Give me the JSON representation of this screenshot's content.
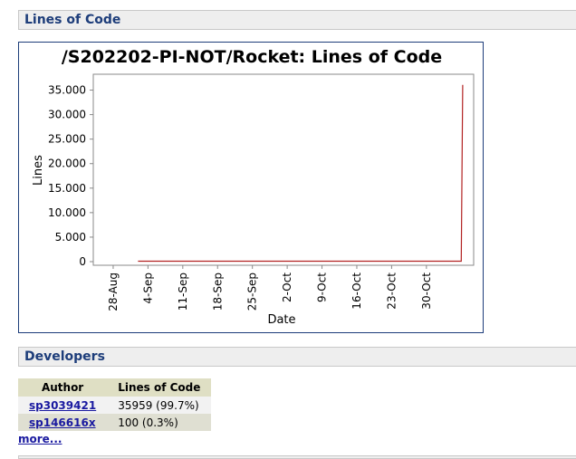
{
  "sections": {
    "loc_title": "Lines of Code",
    "dev_title": "Developers"
  },
  "chart_data": {
    "type": "line",
    "title": "/S202202-PI-NOT/Rocket: Lines of Code",
    "xlabel": "Date",
    "ylabel": "Lines",
    "ylim": [
      0,
      37500
    ],
    "y_ticks": [
      0,
      5000,
      10000,
      15000,
      20000,
      25000,
      30000,
      35000
    ],
    "y_tick_labels": [
      "0",
      "5.000",
      "10.000",
      "15.000",
      "20.000",
      "25.000",
      "30.000",
      "35.000"
    ],
    "x_ticks": [
      "28-Aug",
      "4-Sep",
      "11-Sep",
      "18-Sep",
      "25-Sep",
      "2-Oct",
      "9-Oct",
      "16-Oct",
      "23-Oct",
      "30-Oct"
    ],
    "series": [
      {
        "color": "#b22222",
        "x_days": [
          5,
          70,
          70.3
        ],
        "y": [
          100,
          100,
          36059
        ]
      }
    ],
    "x_days_range": [
      -4,
      72.5
    ],
    "grid": false
  },
  "developers": {
    "headers": [
      "Author",
      "Lines of Code"
    ],
    "rows": [
      {
        "author": "sp3039421",
        "loc": "35959 (99.7%)"
      },
      {
        "author": "sp146616x",
        "loc": "100 (0.3%)"
      }
    ],
    "more": "more..."
  }
}
